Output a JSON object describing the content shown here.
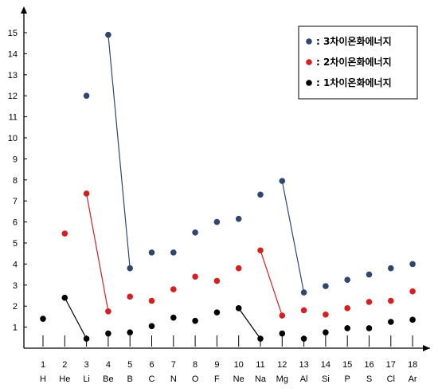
{
  "chart_data": {
    "type": "scatter",
    "title": "",
    "xlabel": "",
    "ylabel": "",
    "ylim": [
      0,
      15.6
    ],
    "y_ticks": [
      1,
      2,
      3,
      4,
      5,
      6,
      7,
      8,
      9,
      10,
      11,
      12,
      13,
      14,
      15
    ],
    "x_numbers": [
      "1",
      "2",
      "3",
      "4",
      "5",
      "6",
      "7",
      "8",
      "9",
      "10",
      "11",
      "12",
      "13",
      "14",
      "15",
      "16",
      "17",
      "18"
    ],
    "x_elements": [
      "H",
      "He",
      "Li",
      "Be",
      "B",
      "C",
      "N",
      "O",
      "F",
      "Ne",
      "Na",
      "Mg",
      "Al",
      "Si",
      "P",
      "S",
      "Cl",
      "Ar"
    ],
    "legend_placement": "top-right",
    "series": [
      {
        "name": "3차이온화에너지",
        "color": "#2f4670",
        "points": [
          [
            3,
            12.0
          ],
          [
            4,
            14.9
          ],
          [
            5,
            3.8
          ],
          [
            6,
            4.55
          ],
          [
            7,
            4.55
          ],
          [
            8,
            5.5
          ],
          [
            9,
            6.0
          ],
          [
            10,
            6.15
          ],
          [
            11,
            7.3
          ],
          [
            12,
            7.95
          ],
          [
            13,
            2.65
          ],
          [
            14,
            2.95
          ],
          [
            15,
            3.25
          ],
          [
            16,
            3.5
          ],
          [
            17,
            3.8
          ],
          [
            18,
            4.0
          ]
        ],
        "links": [
          [
            4,
            5
          ],
          [
            12,
            13
          ]
        ]
      },
      {
        "name": "2차이온화에너지",
        "color": "#d42020",
        "points": [
          [
            2,
            5.45
          ],
          [
            3,
            7.35
          ],
          [
            4,
            1.75
          ],
          [
            5,
            2.45
          ],
          [
            6,
            2.25
          ],
          [
            7,
            2.8
          ],
          [
            8,
            3.4
          ],
          [
            9,
            3.2
          ],
          [
            10,
            3.8
          ],
          [
            11,
            4.65
          ],
          [
            12,
            1.55
          ],
          [
            13,
            1.8
          ],
          [
            14,
            1.6
          ],
          [
            15,
            1.9
          ],
          [
            16,
            2.2
          ],
          [
            17,
            2.25
          ],
          [
            18,
            2.7
          ]
        ],
        "links": [
          [
            3,
            4
          ],
          [
            11,
            12
          ]
        ]
      },
      {
        "name": "1차이온화에너지",
        "color": "#000000",
        "points": [
          [
            1,
            1.4
          ],
          [
            2,
            2.4
          ],
          [
            3,
            0.45
          ],
          [
            4,
            0.7
          ],
          [
            5,
            0.75
          ],
          [
            6,
            1.05
          ],
          [
            7,
            1.45
          ],
          [
            8,
            1.3
          ],
          [
            9,
            1.7
          ],
          [
            10,
            1.9
          ],
          [
            11,
            0.45
          ],
          [
            12,
            0.7
          ],
          [
            13,
            0.45
          ],
          [
            14,
            0.75
          ],
          [
            15,
            0.95
          ],
          [
            16,
            0.95
          ],
          [
            17,
            1.25
          ],
          [
            18,
            1.35
          ]
        ],
        "links": [
          [
            2,
            3
          ],
          [
            10,
            11
          ]
        ]
      }
    ]
  }
}
